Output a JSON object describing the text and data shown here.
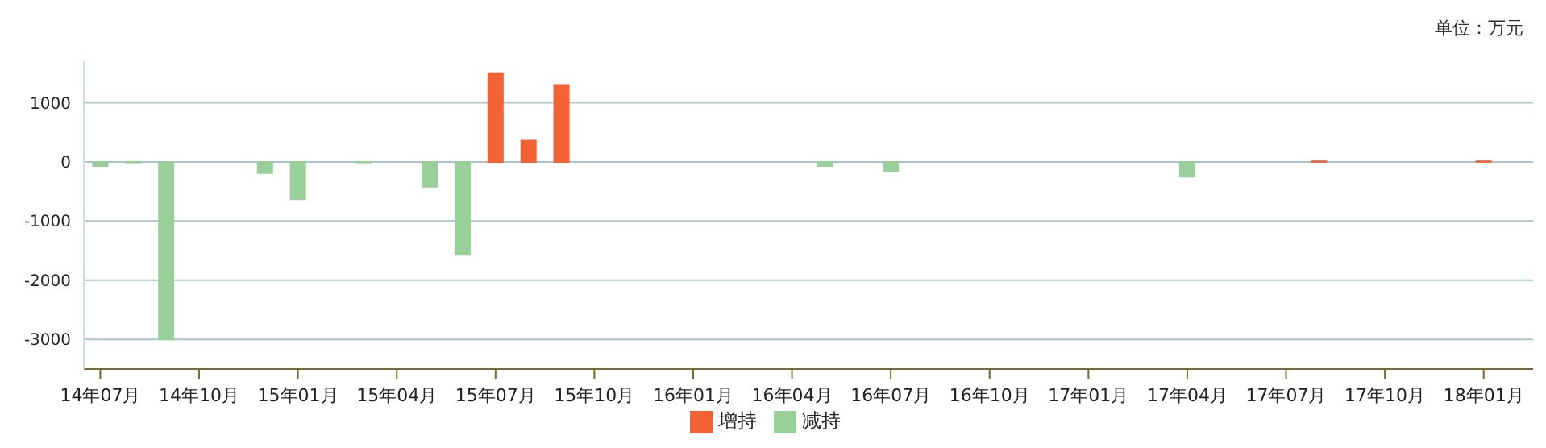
{
  "chart_data": {
    "type": "bar",
    "stacked": true,
    "annotations": [
      "单位：万元"
    ],
    "categories": [
      "14年07月",
      null,
      null,
      "14年10月",
      null,
      null,
      "15年01月",
      null,
      null,
      "15年04月",
      null,
      null,
      "15年07月",
      null,
      null,
      "15年10月",
      null,
      null,
      "16年01月",
      null,
      null,
      "16年04月",
      null,
      null,
      "16年07月",
      null,
      null,
      "16年10月",
      null,
      null,
      "17年01月",
      null,
      null,
      "17年04月",
      null,
      null,
      "17年07月",
      null,
      null,
      "17年10月",
      null,
      null,
      "18年01月",
      null
    ],
    "series": [
      {
        "name": "增持",
        "color": "#f26234",
        "values": [
          null,
          null,
          null,
          null,
          null,
          null,
          null,
          null,
          null,
          null,
          null,
          null,
          1500,
          360,
          1300,
          null,
          null,
          null,
          null,
          null,
          null,
          null,
          null,
          null,
          null,
          null,
          null,
          null,
          null,
          null,
          null,
          null,
          null,
          null,
          null,
          null,
          null,
          10,
          null,
          null,
          null,
          null,
          10,
          null
        ]
      },
      {
        "name": "减持",
        "color": "#99d09a",
        "values": [
          -70,
          -10,
          -3000,
          null,
          null,
          -190,
          -630,
          null,
          -10,
          null,
          -420,
          -1570,
          null,
          null,
          null,
          null,
          null,
          null,
          null,
          null,
          null,
          null,
          -70,
          null,
          -160,
          null,
          null,
          null,
          null,
          null,
          null,
          null,
          null,
          -250,
          null,
          null,
          null,
          null,
          null,
          null,
          null,
          null,
          null,
          null
        ]
      }
    ],
    "ylim": [
      -3500,
      1700
    ],
    "yticks": [
      -3000,
      -2000,
      -1000,
      0,
      1000
    ],
    "grid": "y",
    "legend": "bottom"
  }
}
